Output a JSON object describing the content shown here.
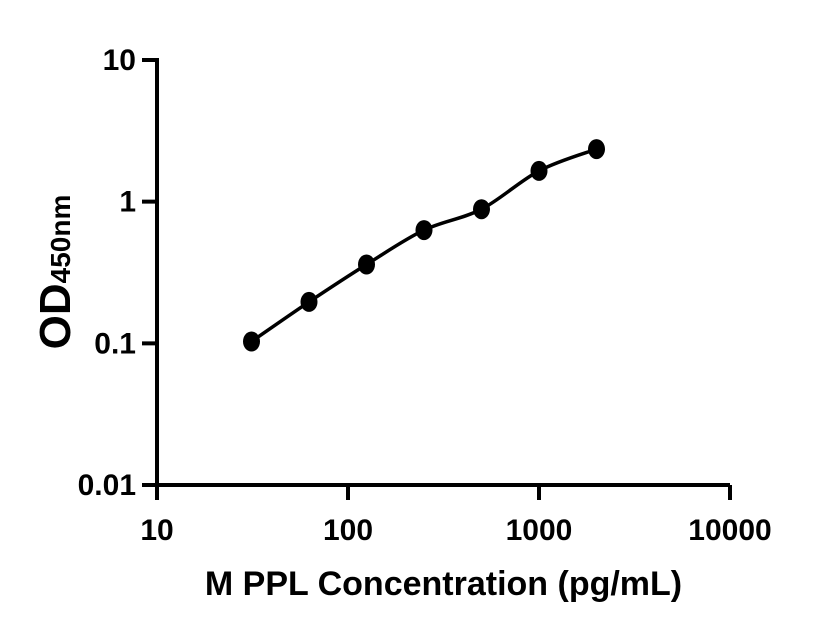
{
  "chart_data": {
    "type": "scatter",
    "title": "",
    "xlabel": "M PPL Concentration (pg/mL)",
    "ylabel": "OD450nm",
    "ylabel_main": "OD",
    "ylabel_sub": "450nm",
    "x_scale": "log10",
    "y_scale": "log10",
    "xlim": [
      10,
      10000
    ],
    "ylim": [
      0.01,
      10
    ],
    "x_tick_values": [
      10,
      100,
      1000,
      10000
    ],
    "x_tick_labels": [
      "10",
      "100",
      "1000",
      "10000"
    ],
    "y_tick_values": [
      0.01,
      0.1,
      1,
      10
    ],
    "y_tick_labels": [
      "0.01",
      "0.1",
      "1",
      "10"
    ],
    "grid": false,
    "legend": "none",
    "series": [
      {
        "x": [
          31.25,
          62.5,
          125,
          250,
          500,
          1000,
          2000
        ],
        "y": [
          0.103,
          0.196,
          0.36,
          0.63,
          0.885,
          1.65,
          2.35
        ],
        "marker": "filled-circle",
        "line": "smooth",
        "color": "#000000"
      }
    ],
    "colors": {
      "axis": "#000000",
      "text": "#000000",
      "background": "#ffffff"
    }
  }
}
